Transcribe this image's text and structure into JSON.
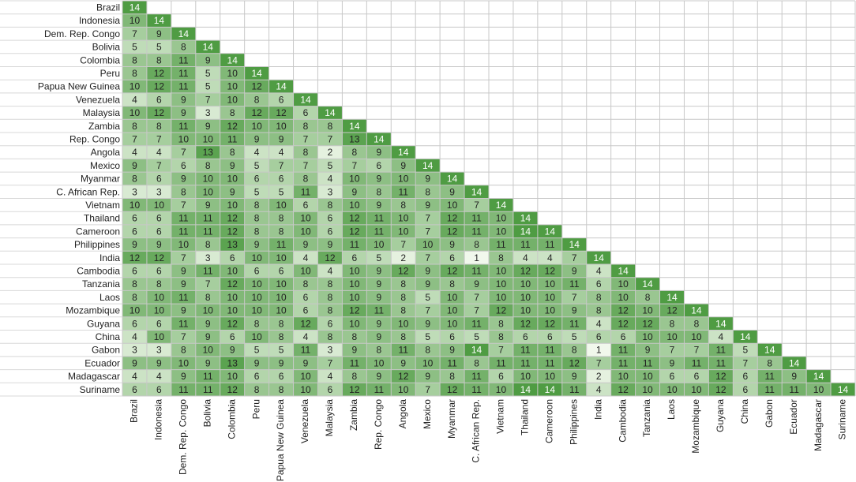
{
  "chart_data": {
    "type": "heatmap",
    "categories": [
      "Brazil",
      "Indonesia",
      "Dem. Rep. Congo",
      "Bolivia",
      "Colombia",
      "Peru",
      "Papua New Guinea",
      "Venezuela",
      "Malaysia",
      "Zambia",
      "Rep. Congo",
      "Angola",
      "Mexico",
      "Myanmar",
      "C. African Rep.",
      "Vietnam",
      "Thailand",
      "Cameroon",
      "Philippines",
      "India",
      "Cambodia",
      "Tanzania",
      "Laos",
      "Mozambique",
      "Guyana",
      "China",
      "Gabon",
      "Ecuador",
      "Madagascar",
      "Suriname"
    ],
    "values": [
      [
        14
      ],
      [
        10,
        14
      ],
      [
        7,
        9,
        14
      ],
      [
        5,
        5,
        8,
        14
      ],
      [
        8,
        8,
        11,
        9,
        14
      ],
      [
        8,
        12,
        11,
        5,
        10,
        14
      ],
      [
        10,
        12,
        11,
        5,
        10,
        12,
        14
      ],
      [
        4,
        6,
        9,
        7,
        10,
        8,
        6,
        14
      ],
      [
        10,
        12,
        9,
        3,
        8,
        12,
        12,
        6,
        14
      ],
      [
        8,
        8,
        11,
        9,
        12,
        10,
        10,
        8,
        8,
        14
      ],
      [
        7,
        7,
        10,
        10,
        11,
        9,
        9,
        7,
        7,
        13,
        14
      ],
      [
        4,
        4,
        7,
        13,
        8,
        4,
        4,
        8,
        2,
        8,
        9,
        14
      ],
      [
        9,
        7,
        6,
        8,
        9,
        5,
        7,
        7,
        5,
        7,
        6,
        9,
        14
      ],
      [
        8,
        6,
        9,
        10,
        10,
        6,
        6,
        8,
        4,
        10,
        9,
        10,
        9,
        14
      ],
      [
        3,
        3,
        8,
        10,
        9,
        5,
        5,
        11,
        3,
        9,
        8,
        11,
        8,
        9,
        14
      ],
      [
        10,
        10,
        7,
        9,
        10,
        8,
        10,
        6,
        8,
        10,
        9,
        8,
        9,
        10,
        7,
        14
      ],
      [
        6,
        6,
        11,
        11,
        12,
        8,
        8,
        10,
        6,
        12,
        11,
        10,
        7,
        12,
        11,
        10,
        14
      ],
      [
        6,
        6,
        11,
        11,
        12,
        8,
        8,
        10,
        6,
        12,
        11,
        10,
        7,
        12,
        11,
        10,
        14,
        14
      ],
      [
        9,
        9,
        10,
        8,
        13,
        9,
        11,
        9,
        9,
        11,
        10,
        7,
        10,
        9,
        8,
        11,
        11,
        11,
        14
      ],
      [
        12,
        12,
        7,
        3,
        6,
        10,
        10,
        4,
        12,
        6,
        5,
        2,
        7,
        6,
        1,
        8,
        4,
        4,
        7,
        14
      ],
      [
        6,
        6,
        9,
        11,
        10,
        6,
        6,
        10,
        4,
        10,
        9,
        12,
        9,
        12,
        11,
        10,
        12,
        12,
        9,
        4,
        14
      ],
      [
        8,
        8,
        9,
        7,
        12,
        10,
        10,
        8,
        8,
        10,
        9,
        8,
        9,
        8,
        9,
        10,
        10,
        10,
        11,
        6,
        10,
        14
      ],
      [
        8,
        10,
        11,
        8,
        10,
        10,
        10,
        6,
        8,
        10,
        9,
        8,
        5,
        10,
        7,
        10,
        10,
        10,
        7,
        8,
        10,
        8,
        14
      ],
      [
        10,
        10,
        9,
        10,
        10,
        10,
        10,
        6,
        8,
        12,
        11,
        8,
        7,
        10,
        7,
        12,
        10,
        10,
        9,
        8,
        12,
        10,
        12,
        14
      ],
      [
        6,
        6,
        11,
        9,
        12,
        8,
        8,
        12,
        6,
        10,
        9,
        10,
        9,
        10,
        11,
        8,
        12,
        12,
        11,
        4,
        12,
        12,
        8,
        8,
        14
      ],
      [
        4,
        10,
        7,
        9,
        6,
        10,
        8,
        4,
        8,
        8,
        9,
        8,
        5,
        6,
        5,
        8,
        6,
        6,
        5,
        6,
        6,
        10,
        10,
        10,
        4,
        14
      ],
      [
        3,
        3,
        8,
        10,
        9,
        5,
        5,
        11,
        3,
        9,
        8,
        11,
        8,
        9,
        14,
        7,
        11,
        11,
        8,
        1,
        11,
        9,
        7,
        7,
        11,
        5,
        14
      ],
      [
        9,
        9,
        10,
        9,
        13,
        9,
        9,
        9,
        7,
        11,
        10,
        9,
        10,
        11,
        8,
        11,
        11,
        11,
        12,
        7,
        11,
        11,
        9,
        11,
        11,
        7,
        8,
        14
      ],
      [
        4,
        4,
        9,
        11,
        10,
        6,
        6,
        10,
        4,
        8,
        9,
        12,
        9,
        8,
        11,
        6,
        10,
        10,
        9,
        2,
        10,
        10,
        6,
        6,
        12,
        6,
        11,
        9,
        14
      ],
      [
        6,
        6,
        11,
        11,
        12,
        8,
        8,
        10,
        6,
        12,
        11,
        10,
        7,
        12,
        11,
        10,
        14,
        14,
        11,
        4,
        12,
        10,
        10,
        10,
        12,
        6,
        11,
        11,
        10,
        14
      ]
    ],
    "colors": [
      "#f1f8ec",
      "#4f9c43"
    ]
  }
}
